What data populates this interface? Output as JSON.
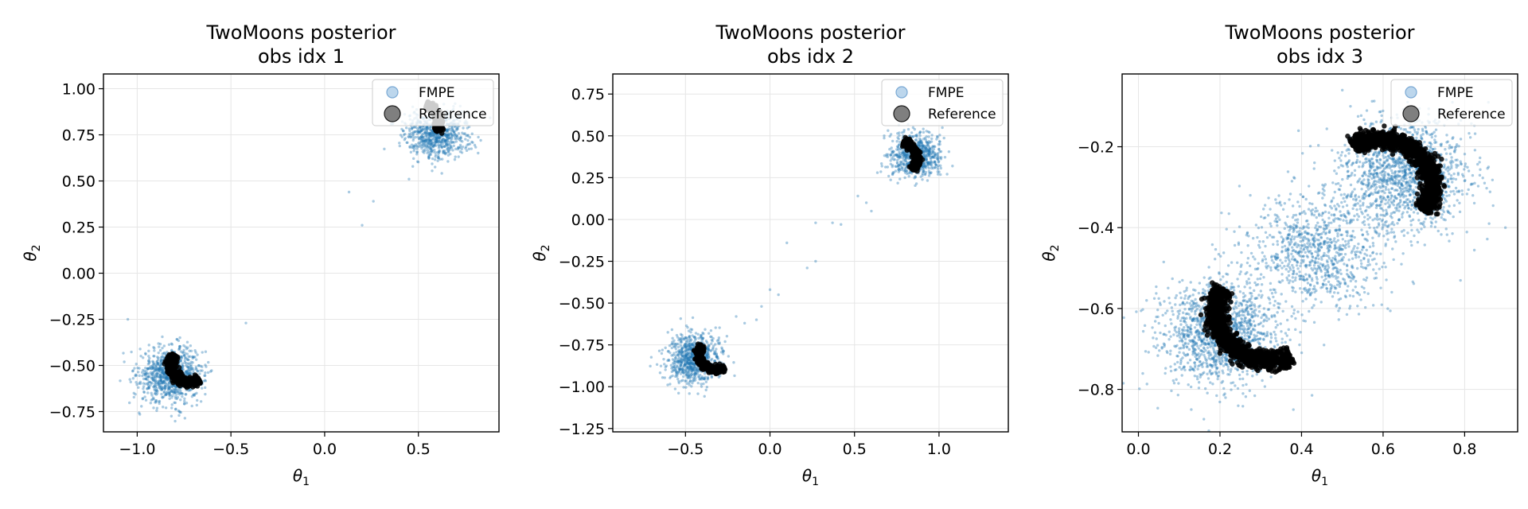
{
  "chart_data": [
    {
      "type": "scatter",
      "title_line1": "TwoMoons posterior",
      "title_line2": "obs idx 1",
      "xlabel": "θ1",
      "ylabel": "θ2",
      "xlim": [
        -1.18,
        0.93
      ],
      "ylim": [
        -0.86,
        1.08
      ],
      "xticks": [
        -1.0,
        -0.5,
        0.0,
        0.5
      ],
      "xtick_labels": [
        "−1.0",
        "−0.5",
        "0.0",
        "0.5"
      ],
      "yticks": [
        -0.75,
        -0.5,
        -0.25,
        0.0,
        0.25,
        0.5,
        0.75,
        1.0
      ],
      "ytick_labels": [
        "−0.75",
        "−0.50",
        "−0.25",
        "0.00",
        "0.25",
        "0.50",
        "0.75",
        "1.00"
      ],
      "grid": true,
      "legend_position": "top-right",
      "series": [
        {
          "name": "FMPE",
          "color": "#1f77b4",
          "clusters": [
            {
              "center": [
                -0.82,
                -0.55
              ],
              "spread": [
                0.085,
                0.075
              ],
              "count": 900
            },
            {
              "center": [
                0.6,
                0.75
              ],
              "spread": [
                0.09,
                0.065
              ],
              "count": 700
            }
          ],
          "points": [
            [
              0.13,
              0.44
            ],
            [
              0.2,
              0.26
            ],
            [
              0.26,
              0.39
            ],
            [
              -0.42,
              -0.27
            ],
            [
              -1.05,
              -0.25
            ],
            [
              0.45,
              0.51
            ]
          ]
        },
        {
          "name": "Reference",
          "color": "#000000",
          "arcs": [
            {
              "center": [
                -0.72,
                -0.49
              ],
              "radius": 0.1,
              "radius_y": 0.1,
              "angle_from": 150,
              "angle_to": 300,
              "width": 0.025,
              "count": 500
            },
            {
              "center": [
                0.51,
                0.82
              ],
              "radius": 0.1,
              "radius_y": 0.1,
              "angle_from": 330,
              "angle_to": 430,
              "width": 0.02,
              "count": 350
            }
          ]
        }
      ]
    },
    {
      "type": "scatter",
      "title_line1": "TwoMoons posterior",
      "title_line2": "obs idx 2",
      "xlabel": "θ1",
      "ylabel": "θ2",
      "xlim": [
        -0.93,
        1.41
      ],
      "ylim": [
        -1.27,
        0.87
      ],
      "xticks": [
        -0.5,
        0.0,
        0.5,
        1.0
      ],
      "xtick_labels": [
        "−0.5",
        "0.0",
        "0.5",
        "1.0"
      ],
      "yticks": [
        -1.25,
        -1.0,
        -0.75,
        -0.5,
        -0.25,
        0.0,
        0.25,
        0.5,
        0.75
      ],
      "ytick_labels": [
        "−1.25",
        "−1.00",
        "−0.75",
        "−0.50",
        "−0.25",
        "0.00",
        "0.25",
        "0.50",
        "0.75"
      ],
      "grid": true,
      "legend_position": "top-right",
      "series": [
        {
          "name": "FMPE",
          "color": "#1f77b4",
          "clusters": [
            {
              "center": [
                -0.45,
                -0.83
              ],
              "spread": [
                0.075,
                0.075
              ],
              "count": 800
            },
            {
              "center": [
                0.86,
                0.38
              ],
              "spread": [
                0.075,
                0.065
              ],
              "count": 700
            }
          ],
          "points": [
            [
              0.52,
              0.14
            ],
            [
              0.57,
              0.1
            ],
            [
              0.6,
              0.05
            ],
            [
              0.1,
              -0.14
            ],
            [
              0.22,
              -0.29
            ],
            [
              0.27,
              -0.25
            ],
            [
              0.37,
              -0.02
            ],
            [
              0.27,
              -0.02
            ],
            [
              0.0,
              -0.42
            ],
            [
              0.05,
              -0.45
            ],
            [
              -0.08,
              -0.6
            ],
            [
              -0.15,
              -0.62
            ],
            [
              -0.2,
              -0.58
            ],
            [
              -0.05,
              -0.52
            ],
            [
              0.42,
              -0.03
            ]
          ]
        },
        {
          "name": "Reference",
          "color": "#000000",
          "arcs": [
            {
              "center": [
                -0.32,
                -0.8
              ],
              "radius": 0.1,
              "radius_y": 0.1,
              "angle_from": 150,
              "angle_to": 300,
              "width": 0.022,
              "count": 450
            },
            {
              "center": [
                0.77,
                0.36
              ],
              "radius": 0.1,
              "radius_y": 0.1,
              "angle_from": 320,
              "angle_to": 440,
              "width": 0.022,
              "count": 450
            }
          ]
        }
      ]
    },
    {
      "type": "scatter",
      "title_line1": "TwoMoons posterior",
      "title_line2": "obs idx 3",
      "xlabel": "θ1",
      "ylabel": "θ2",
      "xlim": [
        -0.04,
        0.93
      ],
      "ylim": [
        -0.905,
        -0.02
      ],
      "xticks": [
        0.0,
        0.2,
        0.4,
        0.6,
        0.8
      ],
      "xtick_labels": [
        "0.0",
        "0.2",
        "0.4",
        "0.6",
        "0.8"
      ],
      "yticks": [
        -0.8,
        -0.6,
        -0.4,
        -0.2
      ],
      "ytick_labels": [
        "−0.8",
        "−0.6",
        "−0.4",
        "−0.2"
      ],
      "grid": true,
      "legend_position": "top-right",
      "series": [
        {
          "name": "FMPE",
          "color": "#1f77b4",
          "clusters": [
            {
              "center": [
                0.2,
                -0.66
              ],
              "spread": [
                0.07,
                0.065
              ],
              "count": 1400
            },
            {
              "center": [
                0.65,
                -0.27
              ],
              "spread": [
                0.08,
                0.07
              ],
              "count": 1400
            },
            {
              "center": [
                0.43,
                -0.46
              ],
              "spread": [
                0.08,
                0.07
              ],
              "count": 900
            }
          ],
          "points": [
            [
              0.52,
              -0.1
            ],
            [
              0.5,
              -0.06
            ],
            [
              0.86,
              -0.39
            ],
            [
              0.9,
              -0.4
            ],
            [
              0.02,
              -0.58
            ],
            [
              0.38,
              -0.85
            ]
          ]
        },
        {
          "name": "Reference",
          "color": "#000000",
          "arcs": [
            {
              "center": [
                0.32,
                -0.61
              ],
              "radius": 0.13,
              "radius_y": 0.12,
              "angle_from": 150,
              "angle_to": 295,
              "width": 0.025,
              "count": 1100
            },
            {
              "center": [
                0.59,
                -0.3
              ],
              "radius": 0.13,
              "radius_y": 0.12,
              "angle_from": 330,
              "angle_to": 480,
              "width": 0.025,
              "count": 1100
            }
          ]
        }
      ]
    }
  ]
}
